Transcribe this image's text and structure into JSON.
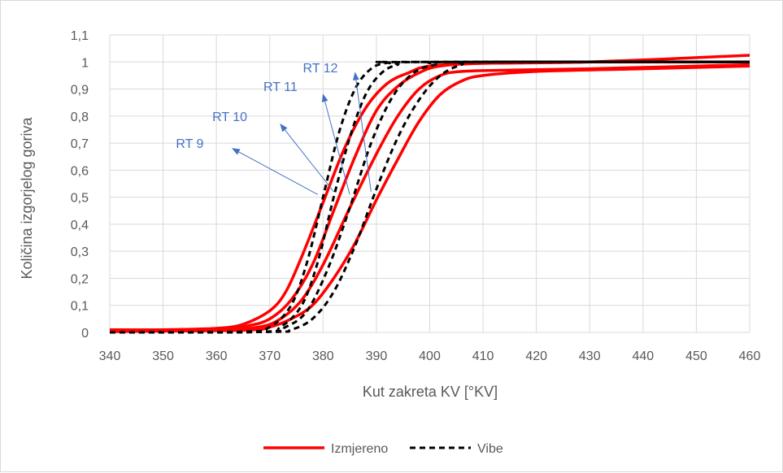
{
  "chart_data": {
    "type": "line",
    "title": "",
    "xlabel": "Kut zakreta KV [°KV]",
    "ylabel": "Količina izgorjelog goriva",
    "xlim": [
      340,
      460
    ],
    "ylim": [
      0,
      1.1
    ],
    "x_ticks": [
      340,
      350,
      360,
      370,
      380,
      390,
      400,
      410,
      420,
      430,
      440,
      450,
      460
    ],
    "y_ticks": [
      0,
      0.1,
      0.2,
      0.3,
      0.4,
      0.5,
      0.6,
      0.7,
      0.8,
      0.9,
      1,
      1.1
    ],
    "y_tick_labels": [
      "0",
      "0,1",
      "0,2",
      "0,3",
      "0,4",
      "0,5",
      "0,6",
      "0,7",
      "0,8",
      "0,9",
      "1",
      "1,1"
    ],
    "grid": true,
    "legend_position": "bottom",
    "legend": [
      {
        "label": "Izmjereno",
        "color": "#ff0000",
        "style": "solid"
      },
      {
        "label": "Vibe",
        "color": "#000000",
        "style": "dashed"
      }
    ],
    "series": [
      {
        "group": "Izmjereno",
        "color": "#ff0000",
        "style": "solid",
        "points": [
          [
            340,
            0.01
          ],
          [
            350,
            0.01
          ],
          [
            360,
            0.015
          ],
          [
            365,
            0.03
          ],
          [
            370,
            0.08
          ],
          [
            373,
            0.15
          ],
          [
            376,
            0.28
          ],
          [
            380,
            0.48
          ],
          [
            384,
            0.68
          ],
          [
            388,
            0.83
          ],
          [
            392,
            0.92
          ],
          [
            396,
            0.96
          ],
          [
            400,
            0.985
          ],
          [
            410,
            0.995
          ],
          [
            430,
            1.0
          ],
          [
            460,
            1.0
          ]
        ]
      },
      {
        "group": "Izmjereno",
        "color": "#ff0000",
        "style": "solid",
        "points": [
          [
            340,
            0.008
          ],
          [
            360,
            0.012
          ],
          [
            366,
            0.025
          ],
          [
            370,
            0.05
          ],
          [
            374,
            0.12
          ],
          [
            378,
            0.25
          ],
          [
            382,
            0.45
          ],
          [
            386,
            0.65
          ],
          [
            390,
            0.82
          ],
          [
            394,
            0.91
          ],
          [
            398,
            0.96
          ],
          [
            402,
            0.985
          ],
          [
            410,
            0.995
          ],
          [
            430,
            1.0
          ],
          [
            460,
            1.025
          ]
        ]
      },
      {
        "group": "Izmjereno",
        "color": "#ff0000",
        "style": "solid",
        "points": [
          [
            340,
            0.005
          ],
          [
            360,
            0.01
          ],
          [
            368,
            0.02
          ],
          [
            372,
            0.05
          ],
          [
            376,
            0.12
          ],
          [
            380,
            0.25
          ],
          [
            385,
            0.46
          ],
          [
            390,
            0.66
          ],
          [
            394,
            0.8
          ],
          [
            398,
            0.9
          ],
          [
            402,
            0.95
          ],
          [
            406,
            0.965
          ],
          [
            415,
            0.97
          ],
          [
            430,
            0.975
          ],
          [
            460,
            0.99
          ]
        ]
      },
      {
        "group": "Izmjereno",
        "color": "#ff0000",
        "style": "solid",
        "points": [
          [
            340,
            0.003
          ],
          [
            365,
            0.008
          ],
          [
            370,
            0.02
          ],
          [
            374,
            0.05
          ],
          [
            378,
            0.1
          ],
          [
            382,
            0.2
          ],
          [
            386,
            0.33
          ],
          [
            390,
            0.49
          ],
          [
            394,
            0.64
          ],
          [
            398,
            0.78
          ],
          [
            402,
            0.88
          ],
          [
            406,
            0.93
          ],
          [
            410,
            0.95
          ],
          [
            420,
            0.965
          ],
          [
            440,
            0.975
          ],
          [
            460,
            0.985
          ]
        ]
      },
      {
        "group": "Vibe",
        "color": "#000000",
        "style": "dashed",
        "points": [
          [
            340,
            0
          ],
          [
            365,
            0.002
          ],
          [
            370,
            0.02
          ],
          [
            374,
            0.1
          ],
          [
            377,
            0.26
          ],
          [
            380,
            0.5
          ],
          [
            383,
            0.74
          ],
          [
            386,
            0.9
          ],
          [
            389,
            0.975
          ],
          [
            392,
            0.997
          ],
          [
            396,
            1.0
          ],
          [
            460,
            1.0
          ]
        ]
      },
      {
        "group": "Vibe",
        "color": "#000000",
        "style": "dashed",
        "points": [
          [
            340,
            0
          ],
          [
            368,
            0.002
          ],
          [
            372,
            0.02
          ],
          [
            376,
            0.1
          ],
          [
            379,
            0.26
          ],
          [
            382,
            0.5
          ],
          [
            385,
            0.72
          ],
          [
            388,
            0.88
          ],
          [
            391,
            0.96
          ],
          [
            394,
            0.99
          ],
          [
            398,
            1.0
          ],
          [
            460,
            1.0
          ]
        ]
      },
      {
        "group": "Vibe",
        "color": "#000000",
        "style": "dashed",
        "points": [
          [
            340,
            0
          ],
          [
            369,
            0.002
          ],
          [
            373,
            0.02
          ],
          [
            377,
            0.08
          ],
          [
            381,
            0.24
          ],
          [
            385,
            0.46
          ],
          [
            389,
            0.7
          ],
          [
            393,
            0.87
          ],
          [
            397,
            0.96
          ],
          [
            401,
            0.99
          ],
          [
            405,
            1.0
          ],
          [
            460,
            1.0
          ]
        ]
      },
      {
        "group": "Vibe",
        "color": "#000000",
        "style": "dashed",
        "points": [
          [
            340,
            0
          ],
          [
            370,
            0.002
          ],
          [
            374,
            0.01
          ],
          [
            378,
            0.05
          ],
          [
            382,
            0.15
          ],
          [
            386,
            0.32
          ],
          [
            390,
            0.53
          ],
          [
            394,
            0.72
          ],
          [
            398,
            0.86
          ],
          [
            402,
            0.95
          ],
          [
            406,
            0.99
          ],
          [
            410,
            1.0
          ],
          [
            460,
            1.0
          ]
        ]
      }
    ],
    "annotations": [
      {
        "text": "RT 9",
        "x": 355,
        "y": 0.7,
        "arrow_from": [
          379,
          0.51
        ],
        "arrow_to": [
          363,
          0.68
        ]
      },
      {
        "text": "RT 10",
        "x": 362.5,
        "y": 0.8,
        "arrow_from": [
          382,
          0.52
        ],
        "arrow_to": [
          372,
          0.77
        ]
      },
      {
        "text": "RT 11",
        "x": 372,
        "y": 0.91,
        "arrow_from": [
          385,
          0.51
        ],
        "arrow_to": [
          380,
          0.88
        ]
      },
      {
        "text": "RT 12",
        "x": 379.5,
        "y": 0.98,
        "arrow_from": [
          389,
          0.52
        ],
        "arrow_to": [
          386,
          0.96
        ]
      }
    ],
    "colors": {
      "measured": "#ff0000",
      "vibe": "#000000",
      "annotation": "#4472c4",
      "grid": "#d9d9d9",
      "text": "#595959"
    }
  }
}
